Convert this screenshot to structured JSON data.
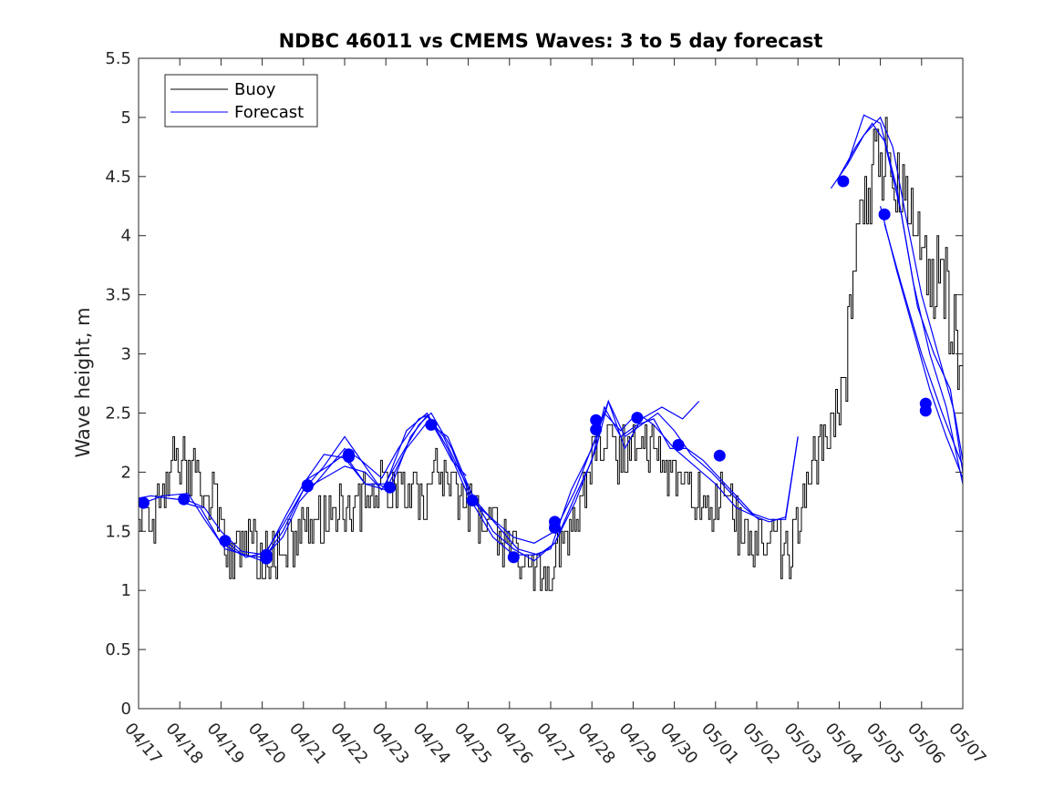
{
  "chart_data": {
    "type": "line",
    "title": "NDBC 46011 vs CMEMS Waves: 3 to 5 day forecast",
    "xlabel": "",
    "ylabel": "Wave height, m",
    "xlim": [
      "04/17",
      "05/07"
    ],
    "ylim": [
      0,
      5.5
    ],
    "x_ticks": [
      "04/17",
      "04/18",
      "04/19",
      "04/20",
      "04/21",
      "04/22",
      "04/23",
      "04/24",
      "04/25",
      "04/26",
      "04/27",
      "04/28",
      "04/29",
      "04/30",
      "05/01",
      "05/02",
      "05/03",
      "05/04",
      "05/05",
      "05/06",
      "05/07"
    ],
    "y_ticks": [
      "0",
      "0.5",
      "1",
      "1.5",
      "2",
      "2.5",
      "3",
      "3.5",
      "4",
      "4.5",
      "5",
      "5.5"
    ],
    "grid": false,
    "legend": {
      "placement": "top-left",
      "entries": [
        "Buoy",
        "Forecast"
      ]
    },
    "colors": {
      "buoy": "#000000",
      "forecast": "#0000ff"
    },
    "buoy_anchors": [
      [
        0.0,
        1.6
      ],
      [
        0.3,
        1.55
      ],
      [
        0.6,
        1.8
      ],
      [
        0.8,
        2.1
      ],
      [
        0.9,
        2.3
      ],
      [
        1.0,
        2.1
      ],
      [
        1.2,
        2.0
      ],
      [
        1.4,
        1.95
      ],
      [
        1.6,
        1.85
      ],
      [
        1.8,
        1.8
      ],
      [
        2.0,
        1.5
      ],
      [
        2.2,
        1.3
      ],
      [
        2.5,
        1.3
      ],
      [
        2.7,
        1.35
      ],
      [
        3.0,
        1.25
      ],
      [
        3.3,
        1.3
      ],
      [
        3.6,
        1.35
      ],
      [
        3.9,
        1.45
      ],
      [
        4.1,
        1.55
      ],
      [
        4.4,
        1.55
      ],
      [
        4.7,
        1.65
      ],
      [
        5.0,
        1.7
      ],
      [
        5.3,
        1.75
      ],
      [
        5.6,
        1.8
      ],
      [
        5.9,
        1.85
      ],
      [
        6.1,
        1.85
      ],
      [
        6.4,
        1.85
      ],
      [
        6.7,
        1.8
      ],
      [
        7.0,
        1.85
      ],
      [
        7.2,
        2.0
      ],
      [
        7.5,
        2.0
      ],
      [
        7.7,
        1.85
      ],
      [
        8.0,
        1.7
      ],
      [
        8.3,
        1.6
      ],
      [
        8.6,
        1.5
      ],
      [
        8.9,
        1.4
      ],
      [
        9.2,
        1.25
      ],
      [
        9.5,
        1.2
      ],
      [
        9.7,
        1.1
      ],
      [
        10.0,
        1.1
      ],
      [
        10.2,
        1.35
      ],
      [
        10.5,
        1.6
      ],
      [
        10.8,
        1.85
      ],
      [
        11.0,
        2.1
      ],
      [
        11.2,
        2.35
      ],
      [
        11.4,
        2.2
      ],
      [
        11.6,
        2.1
      ],
      [
        11.8,
        2.2
      ],
      [
        12.0,
        2.2
      ],
      [
        12.2,
        2.4
      ],
      [
        12.4,
        2.2
      ],
      [
        12.6,
        2.15
      ],
      [
        12.8,
        2.0
      ],
      [
        13.0,
        1.95
      ],
      [
        13.2,
        1.85
      ],
      [
        13.4,
        1.8
      ],
      [
        13.6,
        1.8
      ],
      [
        13.8,
        1.75
      ],
      [
        14.0,
        1.75
      ],
      [
        14.3,
        1.7
      ],
      [
        14.6,
        1.55
      ],
      [
        14.9,
        1.45
      ],
      [
        15.2,
        1.4
      ],
      [
        15.5,
        1.4
      ],
      [
        15.8,
        1.3
      ],
      [
        16.0,
        1.6
      ],
      [
        16.2,
        1.9
      ],
      [
        16.5,
        2.2
      ],
      [
        16.8,
        2.4
      ],
      [
        17.0,
        2.5
      ],
      [
        17.1,
        2.7
      ],
      [
        17.25,
        3.4
      ],
      [
        17.4,
        3.8
      ],
      [
        17.55,
        4.3
      ],
      [
        17.7,
        4.5
      ],
      [
        17.85,
        4.6
      ],
      [
        18.0,
        4.7
      ],
      [
        18.15,
        4.6
      ],
      [
        18.3,
        4.5
      ],
      [
        18.45,
        4.55
      ],
      [
        18.6,
        4.5
      ],
      [
        18.75,
        4.3
      ],
      [
        18.9,
        4.0
      ],
      [
        19.1,
        3.8
      ],
      [
        19.3,
        3.7
      ],
      [
        19.5,
        3.6
      ],
      [
        19.7,
        3.3
      ],
      [
        19.9,
        3.0
      ],
      [
        20.0,
        2.6
      ]
    ],
    "forecast_series": [
      {
        "points": [
          [
            0.0,
            1.78
          ],
          [
            0.3,
            1.8
          ],
          [
            0.7,
            1.78
          ],
          [
            1.2,
            1.76
          ],
          [
            1.6,
            1.7
          ],
          [
            2.0,
            1.5
          ],
          [
            2.5,
            1.33
          ],
          [
            3.1,
            1.3
          ],
          [
            3.5,
            1.45
          ],
          [
            3.9,
            1.75
          ],
          [
            4.4,
            1.95
          ],
          [
            5.0,
            2.2
          ],
          [
            5.4,
            2.1
          ],
          [
            5.9,
            1.95
          ],
          [
            6.3,
            2.2
          ],
          [
            6.8,
            2.45
          ],
          [
            7.0,
            2.48
          ],
          [
            7.3,
            2.3
          ],
          [
            7.6,
            2.1
          ],
          [
            7.95,
            1.97
          ]
        ]
      },
      {
        "points": [
          [
            0.2,
            1.75
          ],
          [
            0.6,
            1.8
          ],
          [
            1.2,
            1.82
          ],
          [
            1.6,
            1.6
          ],
          [
            2.1,
            1.35
          ],
          [
            2.6,
            1.3
          ],
          [
            3.0,
            1.25
          ],
          [
            3.5,
            1.5
          ],
          [
            4.0,
            1.85
          ],
          [
            4.5,
            1.95
          ],
          [
            5.0,
            2.05
          ],
          [
            5.5,
            2.0
          ],
          [
            5.9,
            1.85
          ],
          [
            6.3,
            2.1
          ],
          [
            6.8,
            2.4
          ],
          [
            7.1,
            2.5
          ],
          [
            7.6,
            2.2
          ],
          [
            8.1,
            1.75
          ],
          [
            8.6,
            1.6
          ],
          [
            9.1,
            1.45
          ],
          [
            9.6,
            1.4
          ],
          [
            10.1,
            1.5
          ],
          [
            10.6,
            1.85
          ],
          [
            11.1,
            2.3
          ],
          [
            11.4,
            2.6
          ],
          [
            11.8,
            2.3
          ],
          [
            12.2,
            2.4
          ],
          [
            12.6,
            2.5
          ],
          [
            13.0,
            2.35
          ],
          [
            13.4,
            2.15
          ],
          [
            13.9,
            2.0
          ],
          [
            14.3,
            1.85
          ],
          [
            14.7,
            1.7
          ],
          [
            15.05,
            1.6
          ]
        ]
      },
      {
        "points": [
          [
            1.0,
            1.75
          ],
          [
            1.5,
            1.7
          ],
          [
            2.0,
            1.4
          ],
          [
            2.5,
            1.3
          ],
          [
            3.0,
            1.28
          ],
          [
            3.5,
            1.55
          ],
          [
            4.0,
            1.85
          ],
          [
            4.5,
            2.05
          ],
          [
            5.0,
            2.3
          ],
          [
            5.3,
            2.15
          ],
          [
            5.8,
            1.9
          ],
          [
            6.1,
            1.85
          ],
          [
            6.6,
            2.3
          ],
          [
            7.0,
            2.48
          ],
          [
            7.4,
            2.3
          ],
          [
            7.8,
            2.0
          ],
          [
            8.2,
            1.75
          ],
          [
            8.7,
            1.55
          ],
          [
            9.2,
            1.35
          ],
          [
            9.7,
            1.3
          ],
          [
            10.1,
            1.4
          ],
          [
            10.6,
            1.8
          ],
          [
            11.0,
            2.1
          ],
          [
            11.3,
            2.55
          ],
          [
            11.7,
            2.3
          ],
          [
            12.1,
            2.4
          ],
          [
            12.5,
            2.45
          ],
          [
            12.9,
            2.2
          ],
          [
            13.3,
            2.2
          ],
          [
            13.7,
            2.1
          ],
          [
            14.1,
            1.95
          ],
          [
            14.5,
            1.8
          ],
          [
            14.9,
            1.65
          ],
          [
            15.3,
            1.6
          ],
          [
            15.7,
            1.6
          ],
          [
            16.0,
            2.3
          ]
        ]
      },
      {
        "points": [
          [
            2.0,
            1.45
          ],
          [
            2.6,
            1.28
          ],
          [
            3.1,
            1.32
          ],
          [
            3.6,
            1.65
          ],
          [
            4.0,
            1.9
          ],
          [
            4.5,
            2.15
          ],
          [
            5.0,
            2.12
          ],
          [
            5.5,
            1.9
          ],
          [
            6.0,
            1.85
          ],
          [
            6.5,
            2.2
          ],
          [
            7.0,
            2.42
          ],
          [
            7.5,
            2.3
          ],
          [
            8.1,
            1.8
          ],
          [
            8.6,
            1.5
          ],
          [
            9.1,
            1.35
          ],
          [
            9.6,
            1.25
          ],
          [
            10.1,
            1.4
          ],
          [
            10.6,
            1.75
          ],
          [
            11.1,
            2.2
          ],
          [
            11.4,
            2.6
          ],
          [
            11.8,
            2.2
          ],
          [
            12.2,
            2.45
          ],
          [
            12.7,
            2.55
          ],
          [
            13.2,
            2.45
          ],
          [
            13.6,
            2.6
          ]
        ]
      },
      {
        "points": [
          [
            4.0,
            1.92
          ],
          [
            4.6,
            2.05
          ],
          [
            5.0,
            2.15
          ],
          [
            5.5,
            1.9
          ],
          [
            6.0,
            1.9
          ],
          [
            6.5,
            2.35
          ],
          [
            7.0,
            2.5
          ],
          [
            7.5,
            2.2
          ],
          [
            8.0,
            1.8
          ],
          [
            8.6,
            1.45
          ],
          [
            9.1,
            1.3
          ],
          [
            9.6,
            1.3
          ],
          [
            10.0,
            1.35
          ],
          [
            10.5,
            1.85
          ],
          [
            11.0,
            2.2
          ],
          [
            11.3,
            2.5
          ],
          [
            11.7,
            2.35
          ],
          [
            12.1,
            2.5
          ],
          [
            12.5,
            2.4
          ],
          [
            13.0,
            2.2
          ],
          [
            13.5,
            2.05
          ],
          [
            14.0,
            1.9
          ],
          [
            14.5,
            1.7
          ],
          [
            15.0,
            1.62
          ],
          [
            15.3,
            1.58
          ],
          [
            15.7,
            1.62
          ],
          [
            16.0,
            2.3
          ]
        ]
      },
      {
        "points": [
          [
            16.8,
            4.4
          ],
          [
            17.2,
            4.6
          ],
          [
            17.6,
            4.85
          ],
          [
            18.0,
            5.0
          ],
          [
            18.3,
            4.75
          ],
          [
            18.6,
            4.2
          ],
          [
            19.0,
            3.5
          ],
          [
            19.4,
            3.0
          ],
          [
            19.8,
            2.5
          ],
          [
            20.0,
            2.1
          ]
        ]
      },
      {
        "points": [
          [
            17.0,
            4.5
          ],
          [
            17.4,
            4.75
          ],
          [
            17.8,
            4.95
          ],
          [
            18.1,
            4.8
          ],
          [
            18.5,
            4.2
          ],
          [
            18.9,
            3.4
          ],
          [
            19.3,
            3.0
          ],
          [
            19.7,
            2.7
          ],
          [
            20.0,
            2.0
          ]
        ]
      },
      {
        "points": [
          [
            17.2,
            4.6
          ],
          [
            17.6,
            5.02
          ],
          [
            18.0,
            4.95
          ],
          [
            18.4,
            4.4
          ],
          [
            18.8,
            3.6
          ],
          [
            19.2,
            3.0
          ],
          [
            19.6,
            2.55
          ],
          [
            20.0,
            1.9
          ]
        ]
      },
      {
        "points": [
          [
            18.0,
            4.25
          ],
          [
            18.4,
            3.7
          ],
          [
            18.8,
            3.2
          ],
          [
            19.2,
            2.7
          ],
          [
            19.6,
            2.3
          ],
          [
            20.0,
            1.95
          ]
        ]
      },
      {
        "points": [
          [
            18.1,
            4.1
          ],
          [
            18.5,
            3.6
          ],
          [
            19.0,
            3.0
          ],
          [
            19.5,
            2.5
          ],
          [
            20.0,
            2.05
          ]
        ]
      }
    ],
    "forecast_markers": [
      [
        0.12,
        1.74
      ],
      [
        1.1,
        1.77
      ],
      [
        2.1,
        1.42
      ],
      [
        3.1,
        1.3
      ],
      [
        3.1,
        1.27
      ],
      [
        4.1,
        1.89
      ],
      [
        4.1,
        1.88
      ],
      [
        5.1,
        2.15
      ],
      [
        5.1,
        2.13
      ],
      [
        6.1,
        1.87
      ],
      [
        7.1,
        2.4
      ],
      [
        8.1,
        1.76
      ],
      [
        9.1,
        1.28
      ],
      [
        10.1,
        1.58
      ],
      [
        10.1,
        1.53
      ],
      [
        11.1,
        2.44
      ],
      [
        11.1,
        2.36
      ],
      [
        12.1,
        2.46
      ],
      [
        13.1,
        2.23
      ],
      [
        14.1,
        2.14
      ],
      [
        17.1,
        4.46
      ],
      [
        18.1,
        4.18
      ],
      [
        19.1,
        2.58
      ],
      [
        19.1,
        2.52
      ]
    ]
  }
}
